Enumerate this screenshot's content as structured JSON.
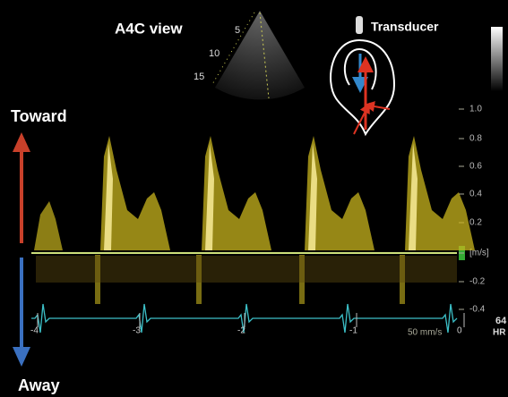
{
  "header": {
    "view": "A4C view",
    "transducer": "Transducer"
  },
  "direction": {
    "toward": "Toward",
    "away": "Away"
  },
  "velocity_scale": [
    "1.0",
    "0.8",
    "0.6",
    "0.4",
    "0.2",
    "[m/s]",
    "-0.2",
    "-0.4"
  ],
  "depth_labels": [
    "5",
    "10",
    "15"
  ],
  "time_labels": [
    "-4",
    "-3",
    "-2",
    "-1",
    "0"
  ],
  "sweep_speed": "50 mm/s",
  "heart_rate": {
    "value": 64,
    "label": "HR"
  }
}
